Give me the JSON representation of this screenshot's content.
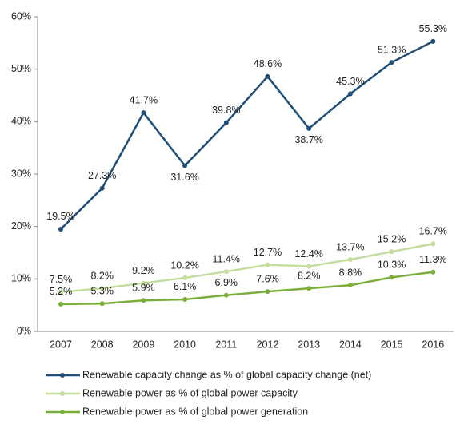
{
  "chart_data": {
    "type": "line",
    "categories": [
      "2007",
      "2008",
      "2009",
      "2010",
      "2011",
      "2012",
      "2013",
      "2014",
      "2015",
      "2016"
    ],
    "ylim": [
      0,
      60
    ],
    "yticks": [
      {
        "value": 0,
        "label": "0%"
      },
      {
        "value": 10,
        "label": "10%"
      },
      {
        "value": 20,
        "label": "20%"
      },
      {
        "value": 30,
        "label": "30%"
      },
      {
        "value": 40,
        "label": "40%"
      },
      {
        "value": 50,
        "label": "50%"
      },
      {
        "value": 60,
        "label": "60%"
      }
    ],
    "grid": false,
    "legend": "bottom",
    "series": [
      {
        "name": "Renewable capacity change as % of global capacity change (net)",
        "color": "#1f4e79",
        "values": [
          19.5,
          27.3,
          41.7,
          31.6,
          39.8,
          48.6,
          38.7,
          45.3,
          51.3,
          55.3
        ],
        "value_labels": [
          "19.5%",
          "27.3%",
          "41.7%",
          "31.6%",
          "39.8%",
          "48.6%",
          "38.7%",
          "45.3%",
          "51.3%",
          "55.3%"
        ]
      },
      {
        "name": "Renewable power as % of global power capacity",
        "color": "#c3dd9c",
        "values": [
          7.5,
          8.2,
          9.2,
          10.2,
          11.4,
          12.7,
          12.4,
          13.7,
          15.2,
          16.7
        ],
        "value_labels": [
          "7.5%",
          "8.2%",
          "9.2%",
          "10.2%",
          "11.4%",
          "12.7%",
          "12.4%",
          "13.7%",
          "15.2%",
          "16.7%"
        ]
      },
      {
        "name": "Renewable power as % of global power generation",
        "color": "#7aad3a",
        "values": [
          5.2,
          5.3,
          5.9,
          6.1,
          6.9,
          7.6,
          8.2,
          8.8,
          10.3,
          11.3
        ],
        "value_labels": [
          "5.2%",
          "5.3%",
          "5.9%",
          "6.1%",
          "6.9%",
          "7.6%",
          "8.2%",
          "8.8%",
          "10.3%",
          "11.3%"
        ]
      }
    ]
  }
}
